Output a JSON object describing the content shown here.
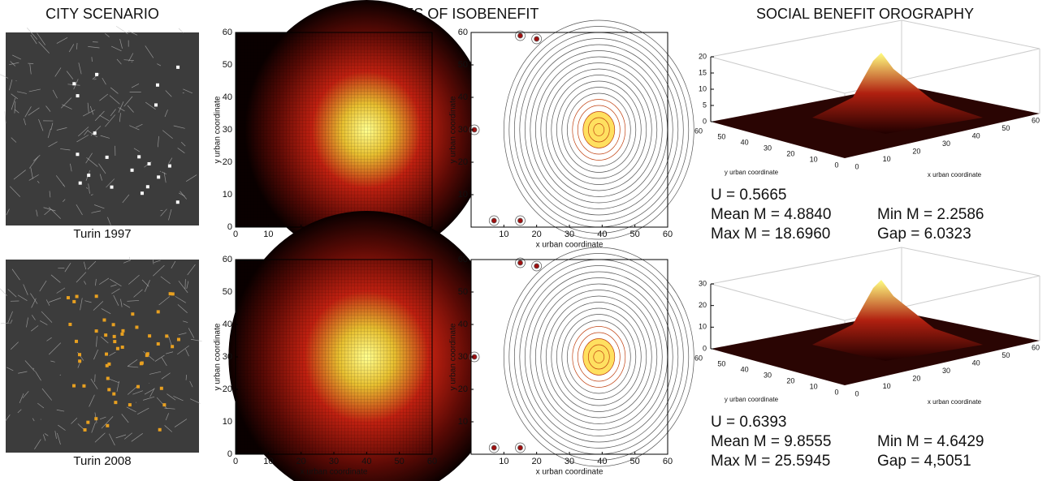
{
  "titles": [
    "CITY SCENARIO",
    "CURVES OF ISOBENEFIT",
    "SOCIAL BENEFIT OROGRAPHY"
  ],
  "axis_labels": {
    "x": "x urban coordinate",
    "y": "y urban coordinate"
  },
  "plane_ticks": [
    0,
    10,
    20,
    30,
    40,
    50,
    60
  ],
  "surface_y_ticks": [
    60,
    50,
    40,
    30,
    20,
    10,
    0
  ],
  "surface_x_ticks": [
    0,
    10,
    20,
    30,
    40,
    50,
    60
  ],
  "rows": [
    {
      "caption": "Turin 1997",
      "z_ticks": [
        0,
        5,
        10,
        15,
        20
      ],
      "stats_left": [
        "U = 0.5665",
        "Mean M = 4.8840",
        "Max M = 18.6960"
      ],
      "stats_right": [
        "Min M = 2.2586",
        "Gap = 6.0323"
      ]
    },
    {
      "caption": "Turin 2008",
      "z_ticks": [
        0,
        10,
        20,
        30
      ],
      "stats_left": [
        "U = 0.6393",
        "Mean M = 9.8555",
        "Max M = 25.5945"
      ],
      "stats_right": [
        "Min M = 4.6429",
        "Gap =  4,5051"
      ]
    }
  ]
}
